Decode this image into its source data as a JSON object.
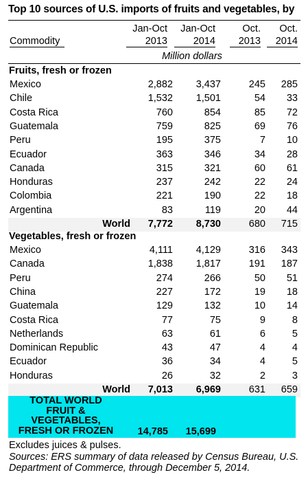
{
  "title": "Top 10 sources of U.S. imports of fruits and vegetables, by",
  "header": {
    "commodity": "Commodity",
    "col1_line1": "Jan-Oct",
    "col1_line2": "2013",
    "col2_line1": "Jan-Oct",
    "col2_line2": "2014",
    "col3_line1": "Oct.",
    "col3_line2": "2013",
    "col4_line1": "Oct.",
    "col4_line2": "2014",
    "unit": "Million dollars"
  },
  "fruits": {
    "heading": "Fruits, fresh or frozen",
    "rows": [
      [
        "Mexico",
        "2,882",
        "3,437",
        "245",
        "285"
      ],
      [
        "Chile",
        "1,532",
        "1,501",
        "54",
        "33"
      ],
      [
        "Costa Rica",
        "760",
        "854",
        "85",
        "72"
      ],
      [
        "Guatemala",
        "759",
        "825",
        "69",
        "76"
      ],
      [
        "Peru",
        "195",
        "375",
        "7",
        "10"
      ],
      [
        "Ecuador",
        "363",
        "346",
        "34",
        "28"
      ],
      [
        "Canada",
        "315",
        "321",
        "60",
        "61"
      ],
      [
        "Honduras",
        "237",
        "242",
        "22",
        "24"
      ],
      [
        "Colombia",
        "221",
        "190",
        "22",
        "18"
      ],
      [
        "Argentina",
        "83",
        "119",
        "20",
        "44"
      ]
    ],
    "world": [
      "World",
      "7,772",
      "8,730",
      "680",
      "715"
    ]
  },
  "vegetables": {
    "heading": "Vegetables, fresh or frozen",
    "rows": [
      [
        "Mexico",
        "4,111",
        "4,129",
        "316",
        "343"
      ],
      [
        "Canada",
        "1,838",
        "1,817",
        "191",
        "187"
      ],
      [
        "Peru",
        "274",
        "266",
        "50",
        "51"
      ],
      [
        "China",
        "227",
        "172",
        "19",
        "18"
      ],
      [
        "Guatemala",
        "129",
        "132",
        "10",
        "14"
      ],
      [
        "Costa Rica",
        "77",
        "75",
        "9",
        "8"
      ],
      [
        "Netherlands",
        "63",
        "61",
        "6",
        "5"
      ],
      [
        "Dominican Republic",
        "43",
        "47",
        "4",
        "4"
      ],
      [
        "Ecuador",
        "36",
        "34",
        "4",
        "5"
      ],
      [
        "Honduras",
        "26",
        "32",
        "2",
        "3"
      ]
    ],
    "world": [
      "World",
      "7,013",
      "6,969",
      "631",
      "659"
    ]
  },
  "total": {
    "label_lines": [
      "TOTAL WORLD",
      "FRUIT &",
      "VEGETABLES,",
      "FRESH OR FROZEN"
    ],
    "jan_oct_2013": "14,785",
    "jan_oct_2014": "15,699",
    "highlight_color": "#00e5ee"
  },
  "notes": {
    "excludes": "Excludes juices & pulses.",
    "source": "Sources: ERS summary of data released by Census Bureau, U.S. Department of Commerce, through December 5, 2014."
  }
}
